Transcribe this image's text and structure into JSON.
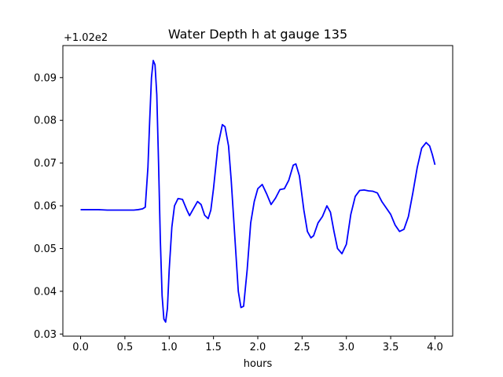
{
  "chart_data": {
    "type": "line",
    "title": "Water Depth h at gauge 135",
    "xlabel": "hours",
    "ylabel": "",
    "offset_text": "+1.02e2",
    "xlim": [
      -0.2,
      4.2
    ],
    "ylim": [
      0.0295,
      0.0975
    ],
    "x_ticks": [
      "0.0",
      "0.5",
      "1.0",
      "1.5",
      "2.0",
      "2.5",
      "3.0",
      "3.5",
      "4.0"
    ],
    "y_ticks": [
      "0.03",
      "0.04",
      "0.05",
      "0.06",
      "0.07",
      "0.08",
      "0.09"
    ],
    "grid": false,
    "series": [
      {
        "color": "#0000ff",
        "points": [
          [
            0.0,
            0.0591
          ],
          [
            0.1,
            0.0591
          ],
          [
            0.2,
            0.0591
          ],
          [
            0.3,
            0.059
          ],
          [
            0.4,
            0.059
          ],
          [
            0.5,
            0.059
          ],
          [
            0.6,
            0.059
          ],
          [
            0.65,
            0.0591
          ],
          [
            0.7,
            0.0593
          ],
          [
            0.73,
            0.0597
          ],
          [
            0.76,
            0.069
          ],
          [
            0.78,
            0.08
          ],
          [
            0.8,
            0.09
          ],
          [
            0.82,
            0.094
          ],
          [
            0.84,
            0.093
          ],
          [
            0.86,
            0.086
          ],
          [
            0.88,
            0.07
          ],
          [
            0.9,
            0.052
          ],
          [
            0.92,
            0.039
          ],
          [
            0.94,
            0.0335
          ],
          [
            0.96,
            0.0328
          ],
          [
            0.98,
            0.036
          ],
          [
            1.0,
            0.045
          ],
          [
            1.03,
            0.055
          ],
          [
            1.06,
            0.06
          ],
          [
            1.1,
            0.0617
          ],
          [
            1.15,
            0.0615
          ],
          [
            1.2,
            0.059
          ],
          [
            1.23,
            0.0577
          ],
          [
            1.27,
            0.0592
          ],
          [
            1.32,
            0.061
          ],
          [
            1.36,
            0.0603
          ],
          [
            1.4,
            0.0578
          ],
          [
            1.44,
            0.057
          ],
          [
            1.47,
            0.059
          ],
          [
            1.5,
            0.064
          ],
          [
            1.55,
            0.074
          ],
          [
            1.6,
            0.079
          ],
          [
            1.63,
            0.0785
          ],
          [
            1.67,
            0.074
          ],
          [
            1.7,
            0.066
          ],
          [
            1.74,
            0.053
          ],
          [
            1.78,
            0.04
          ],
          [
            1.81,
            0.0362
          ],
          [
            1.84,
            0.0365
          ],
          [
            1.88,
            0.045
          ],
          [
            1.92,
            0.056
          ],
          [
            1.96,
            0.061
          ],
          [
            2.0,
            0.064
          ],
          [
            2.05,
            0.065
          ],
          [
            2.1,
            0.0628
          ],
          [
            2.15,
            0.0603
          ],
          [
            2.2,
            0.0618
          ],
          [
            2.25,
            0.0638
          ],
          [
            2.3,
            0.064
          ],
          [
            2.35,
            0.066
          ],
          [
            2.4,
            0.0695
          ],
          [
            2.43,
            0.0698
          ],
          [
            2.47,
            0.067
          ],
          [
            2.52,
            0.059
          ],
          [
            2.56,
            0.054
          ],
          [
            2.6,
            0.0525
          ],
          [
            2.63,
            0.053
          ],
          [
            2.68,
            0.056
          ],
          [
            2.73,
            0.0575
          ],
          [
            2.78,
            0.06
          ],
          [
            2.82,
            0.0585
          ],
          [
            2.86,
            0.054
          ],
          [
            2.9,
            0.05
          ],
          [
            2.95,
            0.0488
          ],
          [
            3.0,
            0.051
          ],
          [
            3.05,
            0.058
          ],
          [
            3.1,
            0.0622
          ],
          [
            3.15,
            0.0636
          ],
          [
            3.2,
            0.0637
          ],
          [
            3.25,
            0.0635
          ],
          [
            3.3,
            0.0634
          ],
          [
            3.35,
            0.063
          ],
          [
            3.4,
            0.061
          ],
          [
            3.45,
            0.0595
          ],
          [
            3.5,
            0.058
          ],
          [
            3.55,
            0.0555
          ],
          [
            3.6,
            0.054
          ],
          [
            3.65,
            0.0545
          ],
          [
            3.7,
            0.0575
          ],
          [
            3.75,
            0.063
          ],
          [
            3.8,
            0.069
          ],
          [
            3.85,
            0.0735
          ],
          [
            3.9,
            0.0748
          ],
          [
            3.94,
            0.074
          ],
          [
            3.97,
            0.072
          ],
          [
            4.0,
            0.0696
          ]
        ]
      }
    ]
  }
}
